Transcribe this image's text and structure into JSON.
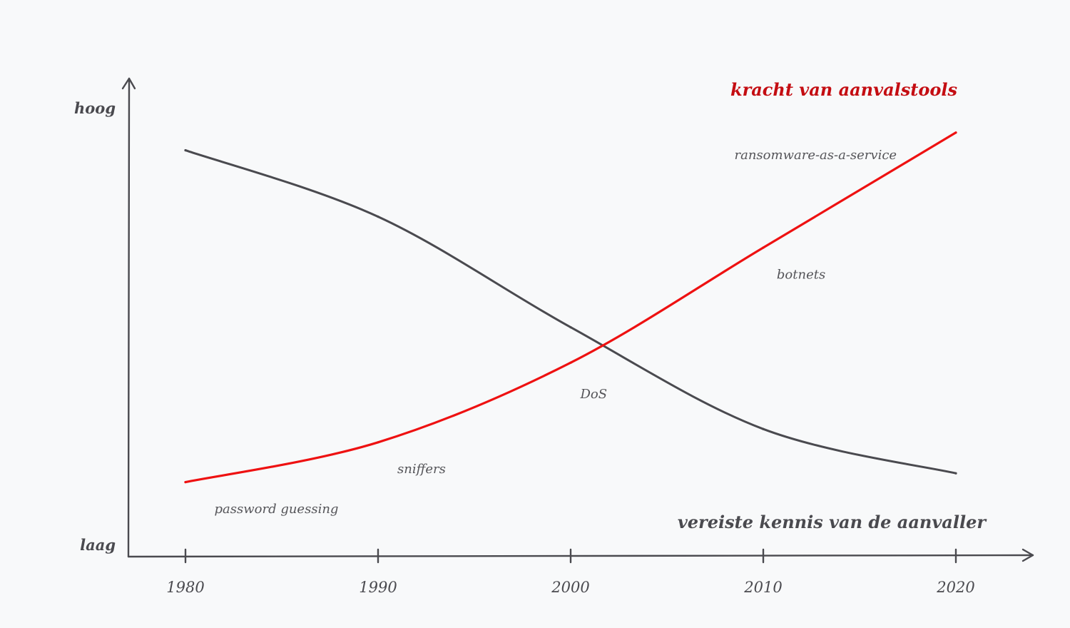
{
  "chart_data": {
    "type": "line",
    "categories": [
      "1980",
      "1990",
      "2000",
      "2010",
      "2020"
    ],
    "x": [
      1980,
      1990,
      2000,
      2010,
      2020
    ],
    "ylabels": {
      "high": "hoog",
      "low": "laag"
    },
    "ylim": [
      0,
      100
    ],
    "grid": false,
    "series": [
      {
        "name": "vereiste kennis van de aanvaller",
        "color": "#4a4a4f",
        "values": [
          87,
          72,
          47,
          24,
          14
        ]
      },
      {
        "name": "kracht van aanvalstools",
        "color": "#ee1111",
        "values": [
          12,
          21,
          39,
          65,
          91
        ]
      }
    ],
    "annotations": [
      {
        "text": "password guessing",
        "x": 1981.5,
        "y": 5
      },
      {
        "text": "sniffers",
        "x": 1991,
        "y": 14
      },
      {
        "text": "DoS",
        "x": 2000.5,
        "y": 31
      },
      {
        "text": "botnets",
        "x": 2010.7,
        "y": 58
      },
      {
        "text": "ransomware-as-a-service",
        "x": 2008.5,
        "y": 85
      }
    ]
  }
}
